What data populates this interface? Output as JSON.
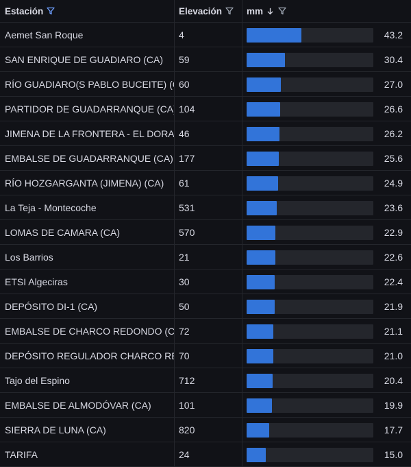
{
  "columns": {
    "station": "Estación",
    "elevation": "Elevación",
    "mm": "mm"
  },
  "colors": {
    "bar": "#3274d9",
    "track": "#24262c",
    "active_filter": "#6e9fff"
  },
  "scale_max": 100,
  "rows": [
    {
      "station": "Aemet San Roque",
      "elevation": "4",
      "mm": "43.2",
      "value": 43.2
    },
    {
      "station": "SAN ENRIQUE DE GUADIARO (CA)",
      "elevation": "59",
      "mm": "30.4",
      "value": 30.4
    },
    {
      "station": "RÍO GUADIARO(S PABLO BUCEITE) (CA)",
      "elevation": "60",
      "mm": "27.0",
      "value": 27.0
    },
    {
      "station": "PARTIDOR DE GUADARRANQUE (CA)",
      "elevation": "104",
      "mm": "26.6",
      "value": 26.6
    },
    {
      "station": "JIMENA DE LA FRONTERA - EL DORADO",
      "elevation": "46",
      "mm": "26.2",
      "value": 26.2
    },
    {
      "station": "EMBALSE DE GUADARRANQUE (CA)",
      "elevation": "177",
      "mm": "25.6",
      "value": 25.6
    },
    {
      "station": "RÍO HOZGARGANTA (JIMENA) (CA)",
      "elevation": "61",
      "mm": "24.9",
      "value": 24.9
    },
    {
      "station": "La Teja - Montecoche",
      "elevation": "531",
      "mm": "23.6",
      "value": 23.6
    },
    {
      "station": "LOMAS DE CAMARA (CA)",
      "elevation": "570",
      "mm": "22.9",
      "value": 22.9
    },
    {
      "station": "Los Barrios",
      "elevation": "21",
      "mm": "22.6",
      "value": 22.6
    },
    {
      "station": "ETSI Algeciras",
      "elevation": "30",
      "mm": "22.4",
      "value": 22.4
    },
    {
      "station": "DEPÓSITO DI-1 (CA)",
      "elevation": "50",
      "mm": "21.9",
      "value": 21.9
    },
    {
      "station": "EMBALSE DE CHARCO REDONDO (CA)",
      "elevation": "72",
      "mm": "21.1",
      "value": 21.1
    },
    {
      "station": "DEPÓSITO REGULADOR CHARCO REDONDO",
      "elevation": "70",
      "mm": "21.0",
      "value": 21.0
    },
    {
      "station": "Tajo del Espino",
      "elevation": "712",
      "mm": "20.4",
      "value": 20.4
    },
    {
      "station": "EMBALSE DE ALMODÓVAR (CA)",
      "elevation": "101",
      "mm": "19.9",
      "value": 19.9
    },
    {
      "station": "SIERRA DE LUNA (CA)",
      "elevation": "820",
      "mm": "17.7",
      "value": 17.7
    },
    {
      "station": "TARIFA",
      "elevation": "24",
      "mm": "15.0",
      "value": 15.0
    }
  ]
}
